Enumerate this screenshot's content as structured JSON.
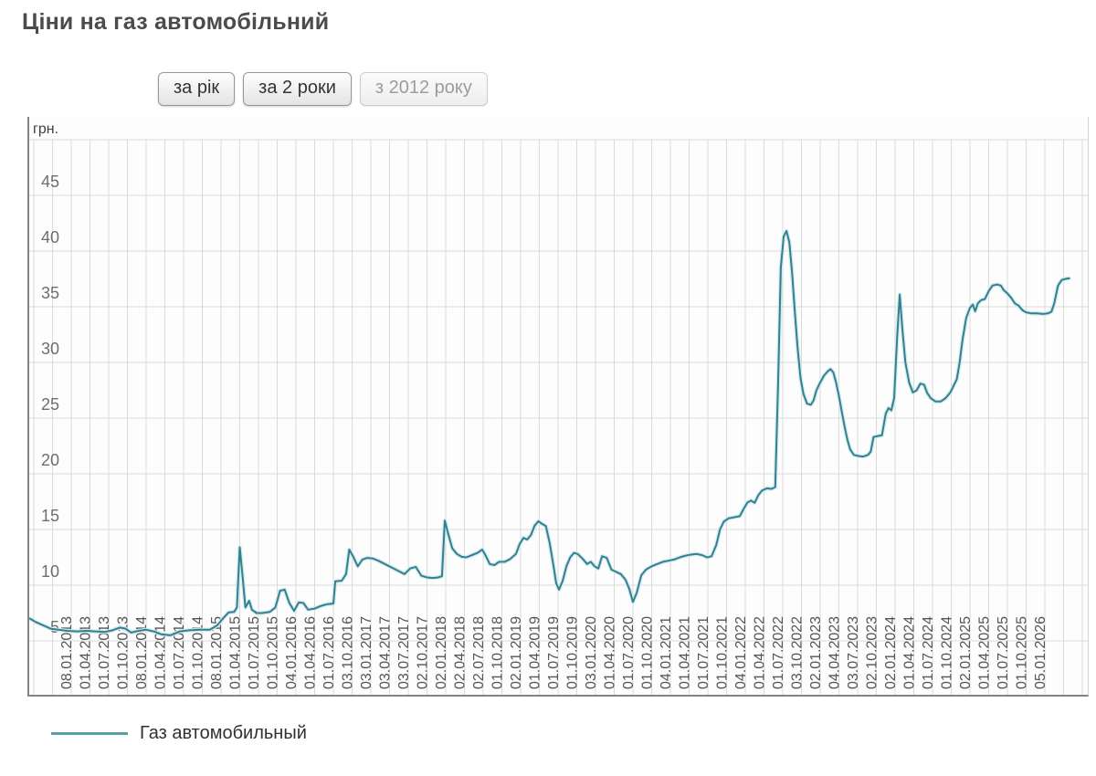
{
  "title": "Ціни на газ автомобільний",
  "toolbar": {
    "buttons": [
      {
        "label": "за рік",
        "active": false
      },
      {
        "label": "за 2 роки",
        "active": false
      },
      {
        "label": "з 2012 року",
        "active": true
      }
    ]
  },
  "legend": {
    "label": "Газ автомобильный"
  },
  "chart_data": {
    "type": "line",
    "title": "Ціни на газ автомобільний",
    "y_axis": {
      "unit": "грн.",
      "ticks": [
        45,
        40,
        35,
        30,
        25,
        20,
        15,
        10,
        5
      ],
      "range": [
        0,
        50
      ],
      "gridline_step": 5
    },
    "x_axis": {
      "labels": [
        "08.01.2013",
        "01.04.2013",
        "01.07.2013",
        "01.10.2013",
        "08.01.2014",
        "01.04.2014",
        "01.07.2014",
        "01.10.2014",
        "08.01.2015",
        "01.04.2015",
        "01.07.2015",
        "01.10.2015",
        "04.01.2016",
        "01.04.2016",
        "01.07.2016",
        "03.10.2016",
        "03.01.2017",
        "03.04.2017",
        "03.07.2017",
        "02.10.2017",
        "02.01.2018",
        "02.04.2018",
        "02.07.2018",
        "01.10.2018",
        "02.01.2019",
        "01.04.2019",
        "01.07.2019",
        "01.10.2019",
        "03.01.2020",
        "01.04.2020",
        "01.07.2020",
        "01.10.2020",
        "04.01.2021",
        "01.04.2021",
        "01.07.2021",
        "01.10.2021",
        "04.01.2022",
        "01.04.2022",
        "01.07.2022",
        "03.10.2022",
        "02.01.2023",
        "04.04.2023",
        "03.07.2023",
        "02.10.2023",
        "02.01.2024",
        "01.04.2024",
        "01.07.2024",
        "01.10.2024",
        "02.01.2025",
        "01.04.2025",
        "01.07.2025",
        "01.10.2025",
        "05.01.2026"
      ],
      "note": "series starts mid-2012, before the first labeled tick; x of points is given in tick-index units (0 = 08.01.2013, fractional allowed, negative = 2012)"
    },
    "legend_position": "bottom-left",
    "grid": true,
    "colors": {
      "line": "#35808e",
      "line_halo": "#cde9ee",
      "grid": "#dadada",
      "axis": "#838383",
      "plot_bg": "#fdfdfd",
      "tick_text": "#555555",
      "y_text": "#6e6e6e"
    },
    "series": [
      {
        "name": "Газ автомобильный",
        "points": [
          [
            -2.2,
            7.0
          ],
          [
            -1.9,
            6.7
          ],
          [
            -1.5,
            6.4
          ],
          [
            -1.1,
            6.1
          ],
          [
            -0.7,
            6.0
          ],
          [
            -0.2,
            5.9
          ],
          [
            0.3,
            5.85
          ],
          [
            0.8,
            5.9
          ],
          [
            1.3,
            5.85
          ],
          [
            1.8,
            5.8
          ],
          [
            2.2,
            5.95
          ],
          [
            2.6,
            6.2
          ],
          [
            2.9,
            6.1
          ],
          [
            3.2,
            5.75
          ],
          [
            3.6,
            5.9
          ],
          [
            4.0,
            6.0
          ],
          [
            4.4,
            5.85
          ],
          [
            4.8,
            5.6
          ],
          [
            5.3,
            5.5
          ],
          [
            5.8,
            5.85
          ],
          [
            6.3,
            5.95
          ],
          [
            6.9,
            6.0
          ],
          [
            7.4,
            6.0
          ],
          [
            7.8,
            6.4
          ],
          [
            8.1,
            7.0
          ],
          [
            8.4,
            7.55
          ],
          [
            8.7,
            7.6
          ],
          [
            8.85,
            8.0
          ],
          [
            9.0,
            13.4
          ],
          [
            9.15,
            10.8
          ],
          [
            9.3,
            8.0
          ],
          [
            9.5,
            8.6
          ],
          [
            9.65,
            7.8
          ],
          [
            9.9,
            7.5
          ],
          [
            10.2,
            7.5
          ],
          [
            10.6,
            7.6
          ],
          [
            10.9,
            8.0
          ],
          [
            11.15,
            9.5
          ],
          [
            11.4,
            9.6
          ],
          [
            11.65,
            8.4
          ],
          [
            11.9,
            7.7
          ],
          [
            12.15,
            8.45
          ],
          [
            12.4,
            8.4
          ],
          [
            12.65,
            7.8
          ],
          [
            13.0,
            7.9
          ],
          [
            13.35,
            8.15
          ],
          [
            13.7,
            8.3
          ],
          [
            14.0,
            8.35
          ],
          [
            14.1,
            10.35
          ],
          [
            14.45,
            10.4
          ],
          [
            14.68,
            11.0
          ],
          [
            14.85,
            13.2
          ],
          [
            15.05,
            12.6
          ],
          [
            15.3,
            11.7
          ],
          [
            15.55,
            12.3
          ],
          [
            15.8,
            12.45
          ],
          [
            16.1,
            12.4
          ],
          [
            16.4,
            12.2
          ],
          [
            16.75,
            11.9
          ],
          [
            17.1,
            11.6
          ],
          [
            17.45,
            11.3
          ],
          [
            17.8,
            11.0
          ],
          [
            18.1,
            11.5
          ],
          [
            18.4,
            11.65
          ],
          [
            18.7,
            10.85
          ],
          [
            19.0,
            10.7
          ],
          [
            19.3,
            10.65
          ],
          [
            19.6,
            10.7
          ],
          [
            19.8,
            10.8
          ],
          [
            19.95,
            15.8
          ],
          [
            20.15,
            14.5
          ],
          [
            20.35,
            13.3
          ],
          [
            20.6,
            12.8
          ],
          [
            20.85,
            12.55
          ],
          [
            21.1,
            12.5
          ],
          [
            21.4,
            12.7
          ],
          [
            21.7,
            12.9
          ],
          [
            21.95,
            13.2
          ],
          [
            22.15,
            12.6
          ],
          [
            22.35,
            11.9
          ],
          [
            22.6,
            11.8
          ],
          [
            22.85,
            12.1
          ],
          [
            23.15,
            12.1
          ],
          [
            23.45,
            12.35
          ],
          [
            23.75,
            12.8
          ],
          [
            23.95,
            13.7
          ],
          [
            24.15,
            14.25
          ],
          [
            24.35,
            14.1
          ],
          [
            24.55,
            14.5
          ],
          [
            24.75,
            15.35
          ],
          [
            24.95,
            15.75
          ],
          [
            25.15,
            15.5
          ],
          [
            25.35,
            15.3
          ],
          [
            25.55,
            13.8
          ],
          [
            25.75,
            11.8
          ],
          [
            25.9,
            10.2
          ],
          [
            26.05,
            9.6
          ],
          [
            26.25,
            10.4
          ],
          [
            26.45,
            11.7
          ],
          [
            26.65,
            12.5
          ],
          [
            26.85,
            12.9
          ],
          [
            27.05,
            12.8
          ],
          [
            27.3,
            12.4
          ],
          [
            27.55,
            11.9
          ],
          [
            27.75,
            12.1
          ],
          [
            27.95,
            11.7
          ],
          [
            28.15,
            11.5
          ],
          [
            28.35,
            12.6
          ],
          [
            28.6,
            12.45
          ],
          [
            28.85,
            11.4
          ],
          [
            29.1,
            11.2
          ],
          [
            29.35,
            11.0
          ],
          [
            29.6,
            10.5
          ],
          [
            29.8,
            9.7
          ],
          [
            30.0,
            8.5
          ],
          [
            30.2,
            9.3
          ],
          [
            30.45,
            10.9
          ],
          [
            30.7,
            11.4
          ],
          [
            31.0,
            11.7
          ],
          [
            31.3,
            11.9
          ],
          [
            31.6,
            12.1
          ],
          [
            31.9,
            12.2
          ],
          [
            32.2,
            12.3
          ],
          [
            32.5,
            12.5
          ],
          [
            32.8,
            12.65
          ],
          [
            33.1,
            12.75
          ],
          [
            33.4,
            12.8
          ],
          [
            33.7,
            12.7
          ],
          [
            33.95,
            12.5
          ],
          [
            34.2,
            12.6
          ],
          [
            34.45,
            13.6
          ],
          [
            34.65,
            15.0
          ],
          [
            34.85,
            15.7
          ],
          [
            35.1,
            16.0
          ],
          [
            35.4,
            16.1
          ],
          [
            35.7,
            16.2
          ],
          [
            35.9,
            16.8
          ],
          [
            36.1,
            17.4
          ],
          [
            36.3,
            17.6
          ],
          [
            36.5,
            17.4
          ],
          [
            36.7,
            18.1
          ],
          [
            36.9,
            18.5
          ],
          [
            37.15,
            18.7
          ],
          [
            37.4,
            18.65
          ],
          [
            37.6,
            18.8
          ],
          [
            37.75,
            28.0
          ],
          [
            37.9,
            38.5
          ],
          [
            38.05,
            41.3
          ],
          [
            38.2,
            41.8
          ],
          [
            38.35,
            40.8
          ],
          [
            38.5,
            38.0
          ],
          [
            38.65,
            34.5
          ],
          [
            38.8,
            31.2
          ],
          [
            38.95,
            28.6
          ],
          [
            39.1,
            27.2
          ],
          [
            39.3,
            26.3
          ],
          [
            39.5,
            26.2
          ],
          [
            39.65,
            26.6
          ],
          [
            39.8,
            27.5
          ],
          [
            40.0,
            28.2
          ],
          [
            40.2,
            28.8
          ],
          [
            40.4,
            29.2
          ],
          [
            40.55,
            29.4
          ],
          [
            40.7,
            29.1
          ],
          [
            40.85,
            28.2
          ],
          [
            41.0,
            27.0
          ],
          [
            41.15,
            25.6
          ],
          [
            41.3,
            24.3
          ],
          [
            41.45,
            23.1
          ],
          [
            41.6,
            22.2
          ],
          [
            41.8,
            21.7
          ],
          [
            42.05,
            21.6
          ],
          [
            42.3,
            21.55
          ],
          [
            42.55,
            21.7
          ],
          [
            42.7,
            22.0
          ],
          [
            42.85,
            23.3
          ],
          [
            43.1,
            23.4
          ],
          [
            43.3,
            23.45
          ],
          [
            43.5,
            25.4
          ],
          [
            43.65,
            25.9
          ],
          [
            43.8,
            25.7
          ],
          [
            43.95,
            26.8
          ],
          [
            44.1,
            32.0
          ],
          [
            44.25,
            36.1
          ],
          [
            44.4,
            32.8
          ],
          [
            44.55,
            30.0
          ],
          [
            44.75,
            28.2
          ],
          [
            44.95,
            27.3
          ],
          [
            45.15,
            27.5
          ],
          [
            45.35,
            28.1
          ],
          [
            45.55,
            28.0
          ],
          [
            45.7,
            27.3
          ],
          [
            45.9,
            26.8
          ],
          [
            46.15,
            26.5
          ],
          [
            46.45,
            26.5
          ],
          [
            46.7,
            26.8
          ],
          [
            46.95,
            27.3
          ],
          [
            47.15,
            28.0
          ],
          [
            47.3,
            28.5
          ],
          [
            47.45,
            30.0
          ],
          [
            47.6,
            32.0
          ],
          [
            47.8,
            34.0
          ],
          [
            48.0,
            34.9
          ],
          [
            48.15,
            35.2
          ],
          [
            48.28,
            34.6
          ],
          [
            48.42,
            35.3
          ],
          [
            48.6,
            35.6
          ],
          [
            48.8,
            35.7
          ],
          [
            49.0,
            36.4
          ],
          [
            49.2,
            36.9
          ],
          [
            49.45,
            37.0
          ],
          [
            49.65,
            36.9
          ],
          [
            49.8,
            36.5
          ],
          [
            50.0,
            36.2
          ],
          [
            50.2,
            35.8
          ],
          [
            50.4,
            35.3
          ],
          [
            50.6,
            35.1
          ],
          [
            50.8,
            34.7
          ],
          [
            51.0,
            34.5
          ],
          [
            51.3,
            34.4
          ],
          [
            51.6,
            34.4
          ],
          [
            51.9,
            34.35
          ],
          [
            52.15,
            34.4
          ],
          [
            52.35,
            34.55
          ],
          [
            52.5,
            35.3
          ],
          [
            52.7,
            36.9
          ],
          [
            52.9,
            37.4
          ],
          [
            53.1,
            37.5
          ],
          [
            53.3,
            37.55
          ]
        ]
      }
    ]
  }
}
